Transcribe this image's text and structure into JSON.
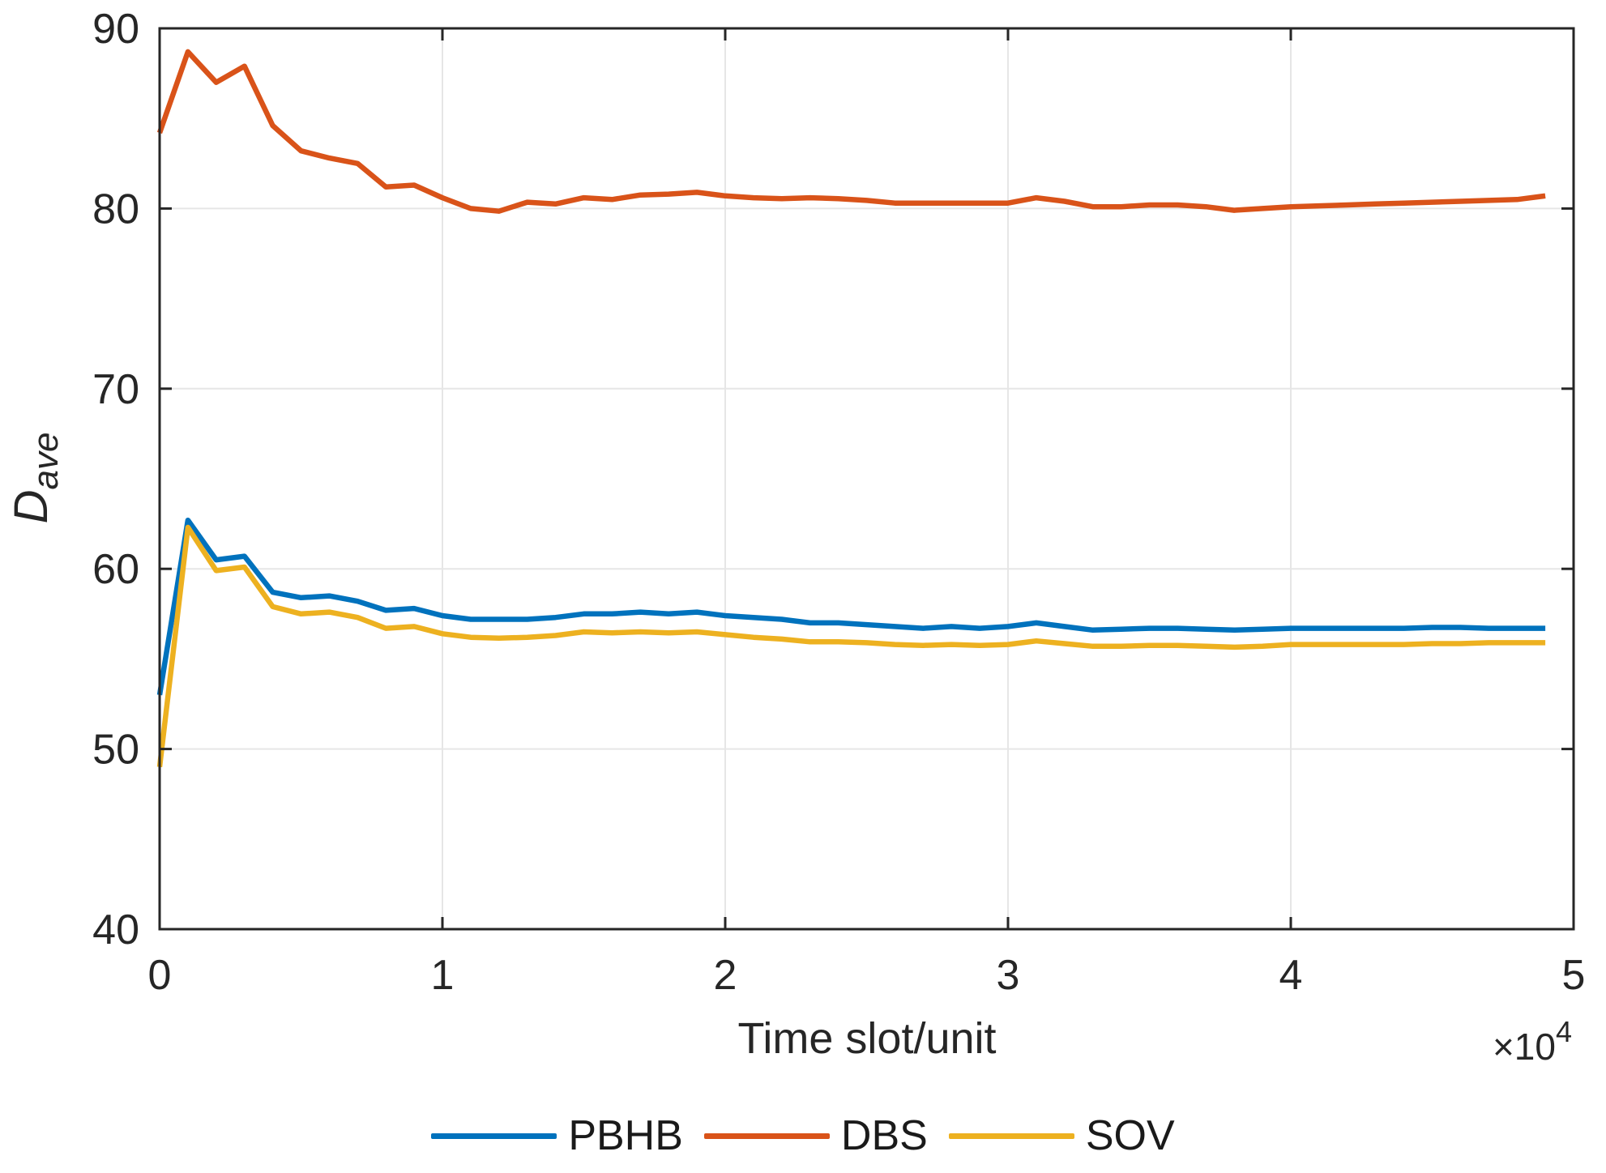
{
  "figure": {
    "background": "#ffffff",
    "axis_color": "#262626",
    "grid_color": "#e6e6e6",
    "xlabel": "Time slot/unit",
    "x_multiplier_base": "×10",
    "x_multiplier_exp": "4",
    "ylabel_main": "D",
    "ylabel_sub": "ave"
  },
  "chart_data": {
    "type": "line",
    "title": "",
    "xlabel": "Time slot/unit",
    "ylabel": "D_ave",
    "x_unit_multiplier": "×10^4",
    "xlim": [
      0,
      5
    ],
    "ylim": [
      40,
      90
    ],
    "xticks": [
      0,
      1,
      2,
      3,
      4,
      5
    ],
    "yticks": [
      40,
      50,
      60,
      70,
      80,
      90
    ],
    "grid": true,
    "legend_position": "bottom-center",
    "x": [
      0.0,
      0.1,
      0.2,
      0.3,
      0.4,
      0.5,
      0.6,
      0.7,
      0.8,
      0.9,
      1.0,
      1.1,
      1.2,
      1.3,
      1.4,
      1.5,
      1.6,
      1.7,
      1.8,
      1.9,
      2.0,
      2.1,
      2.2,
      2.3,
      2.4,
      2.5,
      2.6,
      2.7,
      2.8,
      2.9,
      3.0,
      3.1,
      3.2,
      3.3,
      3.4,
      3.5,
      3.6,
      3.7,
      3.8,
      3.9,
      4.0,
      4.1,
      4.2,
      4.3,
      4.4,
      4.5,
      4.6,
      4.7,
      4.8,
      4.9
    ],
    "series": [
      {
        "name": "PBHB",
        "color": "#0072BD",
        "values": [
          53.0,
          62.7,
          60.5,
          60.7,
          58.7,
          58.4,
          58.5,
          58.2,
          57.7,
          57.8,
          57.4,
          57.2,
          57.2,
          57.2,
          57.3,
          57.5,
          57.5,
          57.6,
          57.5,
          57.6,
          57.4,
          57.3,
          57.2,
          57.0,
          57.0,
          56.9,
          56.8,
          56.7,
          56.8,
          56.7,
          56.8,
          57.0,
          56.8,
          56.6,
          56.65,
          56.7,
          56.7,
          56.65,
          56.6,
          56.65,
          56.7,
          56.7,
          56.7,
          56.7,
          56.7,
          56.75,
          56.75,
          56.7,
          56.7,
          56.7
        ]
      },
      {
        "name": "DBS",
        "color": "#D95319",
        "values": [
          84.2,
          88.7,
          87.0,
          87.9,
          84.6,
          83.2,
          82.8,
          82.5,
          81.2,
          81.3,
          80.6,
          80.0,
          79.85,
          80.35,
          80.25,
          80.6,
          80.5,
          80.75,
          80.8,
          80.9,
          80.7,
          80.6,
          80.55,
          80.6,
          80.55,
          80.45,
          80.3,
          80.3,
          80.3,
          80.3,
          80.3,
          80.6,
          80.4,
          80.1,
          80.1,
          80.2,
          80.2,
          80.1,
          79.9,
          80.0,
          80.1,
          80.15,
          80.2,
          80.25,
          80.3,
          80.35,
          80.4,
          80.45,
          80.5,
          80.7
        ]
      },
      {
        "name": "SOV",
        "color": "#EDB120",
        "values": [
          49.0,
          62.3,
          59.9,
          60.1,
          57.9,
          57.5,
          57.6,
          57.3,
          56.7,
          56.8,
          56.4,
          56.2,
          56.15,
          56.2,
          56.3,
          56.5,
          56.45,
          56.5,
          56.45,
          56.5,
          56.35,
          56.2,
          56.1,
          55.95,
          55.95,
          55.9,
          55.8,
          55.75,
          55.8,
          55.75,
          55.8,
          56.0,
          55.85,
          55.7,
          55.7,
          55.75,
          55.75,
          55.7,
          55.65,
          55.7,
          55.8,
          55.8,
          55.8,
          55.8,
          55.8,
          55.85,
          55.85,
          55.9,
          55.9,
          55.9
        ]
      }
    ]
  }
}
